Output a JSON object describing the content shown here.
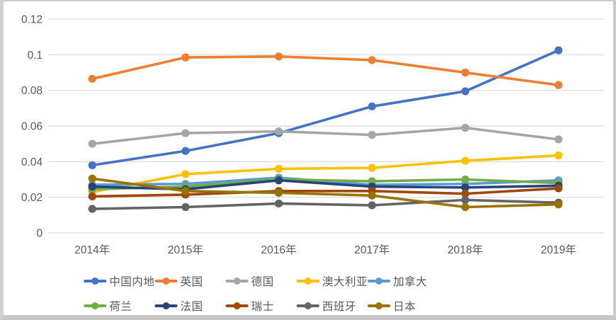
{
  "frame": {
    "background": "#ffffff",
    "border_color": "#cbcbcb"
  },
  "axis": {
    "tick_color": "#595959",
    "grid_color": "#d9d9d9",
    "y_tick_labels": [
      "0.12",
      "0.1",
      "0.08",
      "0.06",
      "0.04",
      "0.02",
      "0"
    ]
  },
  "chart_data": {
    "type": "line",
    "title": "",
    "xlabel": "",
    "ylabel": "",
    "ylim": [
      0,
      0.12
    ],
    "y_tick_step": 0.02,
    "grid": true,
    "marker": "circle",
    "legend_position": "bottom",
    "categories": [
      "2014年",
      "2015年",
      "2016年",
      "2017年",
      "2018年",
      "2019年"
    ],
    "series": [
      {
        "key": "china-mainland",
        "label": "中国内地",
        "color": "#4472C4",
        "values": [
          0.038,
          0.046,
          0.056,
          0.071,
          0.0795,
          0.1025
        ]
      },
      {
        "key": "uk",
        "label": "英国",
        "color": "#ED7D31",
        "values": [
          0.0865,
          0.0985,
          0.099,
          0.097,
          0.09,
          0.083
        ]
      },
      {
        "key": "germany",
        "label": "德国",
        "color": "#A5A5A5",
        "values": [
          0.05,
          0.056,
          0.057,
          0.055,
          0.059,
          0.0525
        ]
      },
      {
        "key": "australia",
        "label": "澳大利亚",
        "color": "#FFC000",
        "values": [
          0.023,
          0.033,
          0.036,
          0.0365,
          0.0405,
          0.0435
        ]
      },
      {
        "key": "canada",
        "label": "加拿大",
        "color": "#5B9BD5",
        "values": [
          0.027,
          0.0275,
          0.031,
          0.027,
          0.0275,
          0.0295
        ]
      },
      {
        "key": "netherlands",
        "label": "荷兰",
        "color": "#70AD47",
        "values": [
          0.0245,
          0.026,
          0.03,
          0.029,
          0.03,
          0.028
        ]
      },
      {
        "key": "france",
        "label": "法国",
        "color": "#264478",
        "values": [
          0.026,
          0.0245,
          0.0295,
          0.026,
          0.0255,
          0.0265
        ]
      },
      {
        "key": "switzerland",
        "label": "瑞士",
        "color": "#9E480E",
        "values": [
          0.0205,
          0.0215,
          0.0235,
          0.0235,
          0.022,
          0.025
        ]
      },
      {
        "key": "spain",
        "label": "西班牙",
        "color": "#636363",
        "values": [
          0.0135,
          0.0145,
          0.0165,
          0.0155,
          0.0185,
          0.017
        ]
      },
      {
        "key": "japan",
        "label": "日本",
        "color": "#997300",
        "values": [
          0.0305,
          0.0235,
          0.0225,
          0.021,
          0.0145,
          0.016
        ]
      }
    ]
  }
}
